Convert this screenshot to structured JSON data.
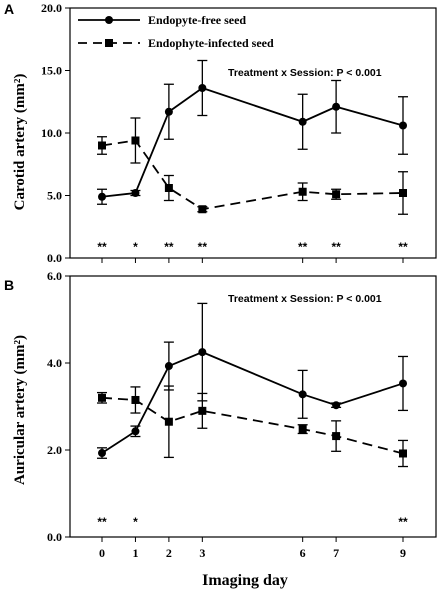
{
  "x_label": "Imaging day",
  "chart_data": [
    {
      "type": "line",
      "panel": "A",
      "ylabel": "Carotid artery (mm²)",
      "ylim": [
        0,
        20
      ],
      "yticks": [
        "0.0",
        "5.0",
        "10.0",
        "15.0",
        "20.0"
      ],
      "x": [
        0,
        1,
        2,
        3,
        6,
        7,
        9
      ],
      "annotation": "Treatment x Session:  P < 0.001",
      "legend_position": "top-left",
      "significance": [
        "**",
        "*",
        "**",
        "**",
        "**",
        "**",
        "**"
      ],
      "series": [
        {
          "name": "Endopyte-free seed",
          "style": "solid",
          "marker": "circle",
          "values": [
            4.9,
            5.2,
            11.7,
            13.6,
            10.9,
            12.1,
            10.6
          ],
          "errors": [
            0.6,
            0.2,
            2.2,
            2.2,
            2.2,
            2.1,
            2.3
          ]
        },
        {
          "name": "Endophyte-infected seed",
          "style": "dashed",
          "marker": "square",
          "values": [
            9.0,
            9.4,
            5.6,
            3.9,
            5.3,
            5.1,
            5.2
          ],
          "errors": [
            0.7,
            1.8,
            1.0,
            0.2,
            0.7,
            0.4,
            1.7
          ]
        }
      ]
    },
    {
      "type": "line",
      "panel": "B",
      "ylabel": "Auricular artery (mm²)",
      "ylim": [
        0,
        6
      ],
      "yticks": [
        "0.0",
        "2.0",
        "4.0",
        "6.0"
      ],
      "x": [
        0,
        1,
        2,
        3,
        6,
        7,
        9
      ],
      "annotation": "Treatment x Session:  P < 0.001",
      "significance": [
        "**",
        "*",
        "",
        "",
        "",
        "",
        "**"
      ],
      "series": [
        {
          "name": "Endopyte-free seed",
          "style": "solid",
          "marker": "circle",
          "values": [
            1.93,
            2.43,
            3.93,
            4.25,
            3.28,
            3.03,
            3.53
          ],
          "errors": [
            0.12,
            0.12,
            0.55,
            1.12,
            0.55,
            0.05,
            0.62
          ]
        },
        {
          "name": "Endophyte-infected seed",
          "style": "dashed",
          "marker": "square",
          "values": [
            3.2,
            3.15,
            2.65,
            2.9,
            2.48,
            2.32,
            1.92
          ],
          "errors": [
            0.12,
            0.3,
            0.82,
            0.4,
            0.1,
            0.35,
            0.3
          ]
        }
      ]
    }
  ]
}
